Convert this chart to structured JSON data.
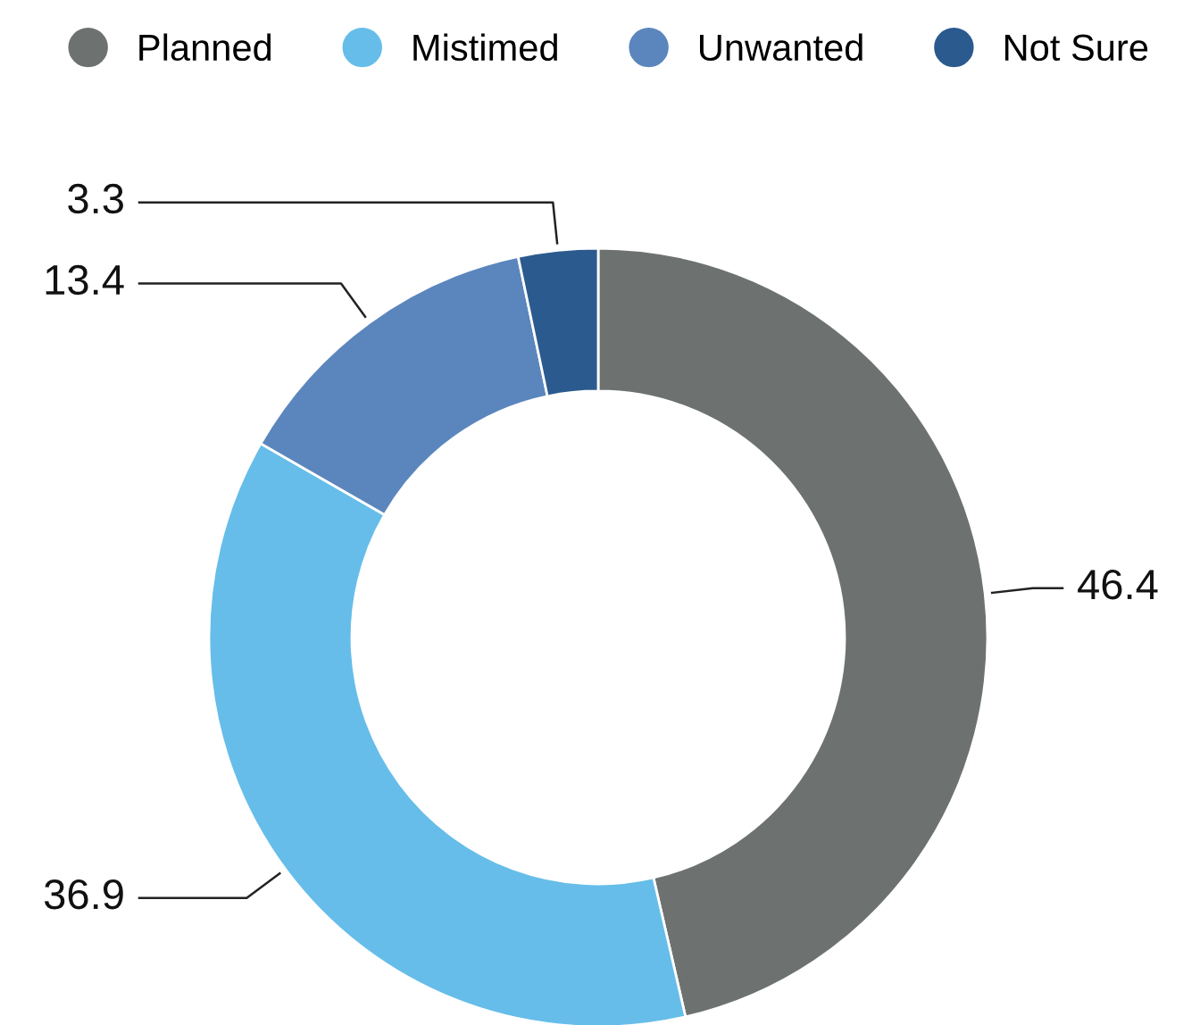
{
  "chart_data": {
    "type": "donut",
    "categories": [
      "Planned",
      "Mistimed",
      "Unwanted",
      "Not Sure"
    ],
    "values": [
      46.4,
      36.9,
      13.4,
      3.3
    ],
    "colors": [
      "#6d7270",
      "#66bde9",
      "#5b86bd",
      "#2b5a8f"
    ],
    "data_labels": true,
    "legend": "top"
  }
}
